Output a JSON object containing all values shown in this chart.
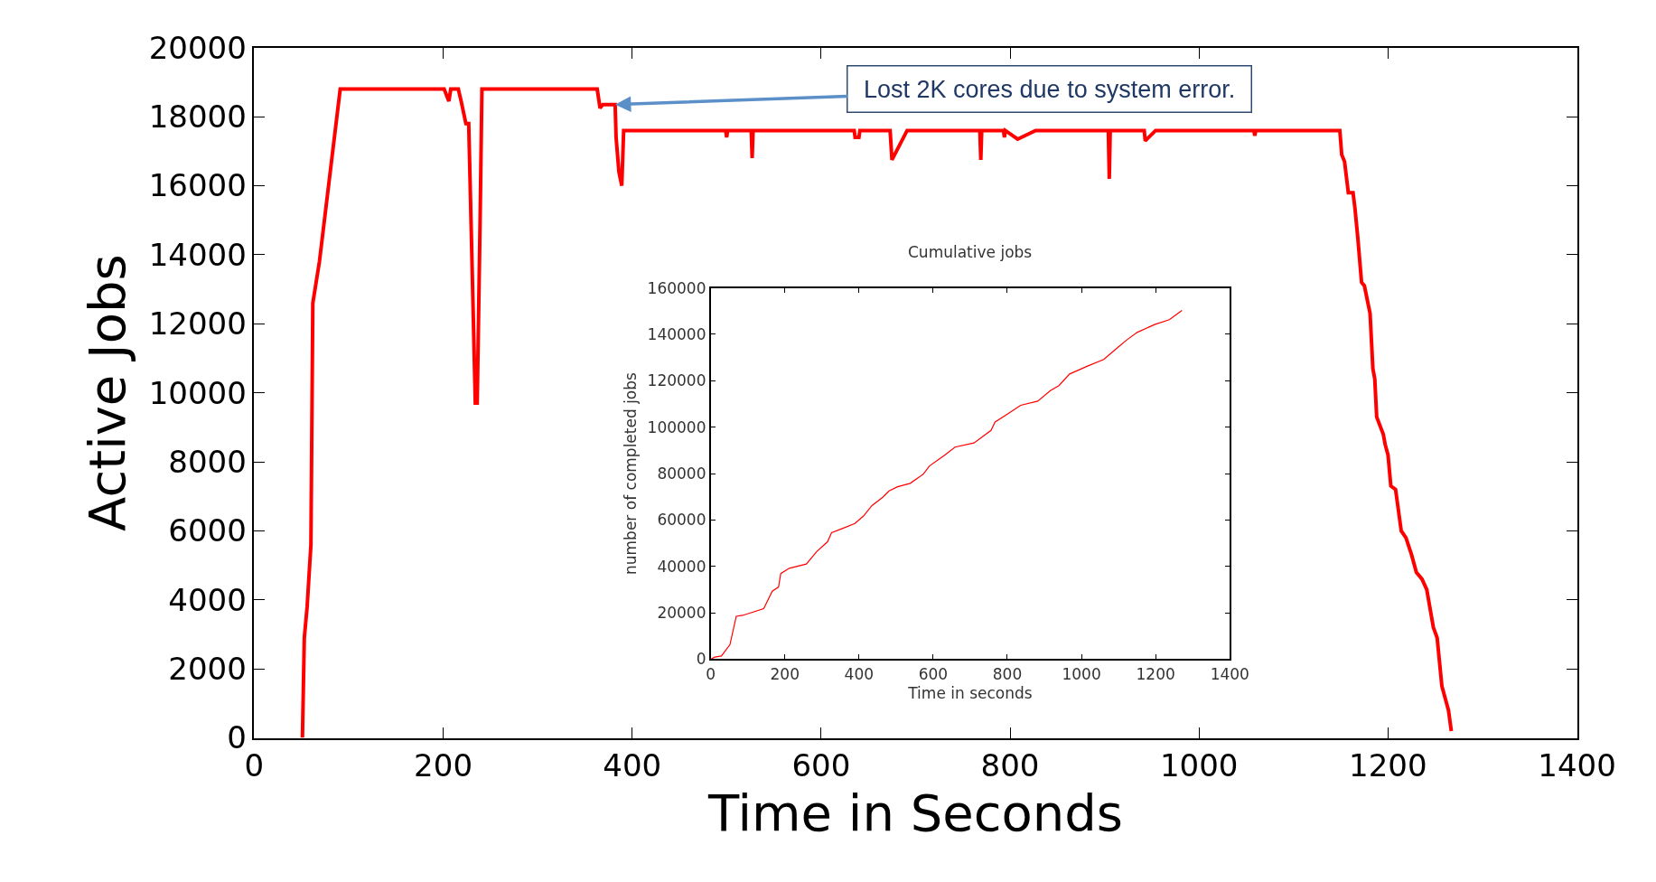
{
  "chart_data": [
    {
      "type": "line",
      "xlabel": "Time in Seconds",
      "ylabel": "Active Jobs",
      "xlim": [
        0,
        1400
      ],
      "ylim": [
        0,
        20000
      ],
      "xticks": [
        0,
        200,
        400,
        600,
        800,
        1000,
        1200,
        1400
      ],
      "yticks": [
        0,
        2000,
        4000,
        6000,
        8000,
        10000,
        12000,
        14000,
        16000,
        18000,
        20000
      ],
      "marker": "none",
      "line_style": "solid",
      "annotations": [
        {
          "text": "Lost 2K cores due to system error.",
          "x": 382,
          "y": 18350
        }
      ],
      "series": [
        {
          "color": "#ff0000",
          "x": [
            51,
            53,
            56,
            60,
            62,
            69,
            91,
            201,
            206,
            208,
            216,
            219,
            224,
            227,
            231,
            234,
            236,
            239,
            241,
            363,
            366,
            369,
            382,
            383,
            386,
            389,
            391,
            499,
            500,
            501,
            526,
            527,
            528,
            635,
            636,
            640,
            641,
            673,
            675,
            691,
            768,
            769,
            770,
            793,
            794,
            795,
            808,
            827,
            904,
            905,
            906,
            942,
            943,
            954,
            1058,
            1059,
            1060,
            1149,
            1151,
            1154,
            1158,
            1163,
            1165,
            1168,
            1172,
            1175,
            1181,
            1184,
            1186,
            1188,
            1195,
            1197,
            1200,
            1203,
            1208,
            1214,
            1219,
            1225,
            1230,
            1236,
            1241,
            1248,
            1252,
            1257,
            1264,
            1267
          ],
          "values": [
            0,
            2900,
            3800,
            5600,
            12600,
            13800,
            18800,
            18800,
            18450,
            18800,
            18800,
            18450,
            17800,
            17800,
            13200,
            9700,
            9700,
            14900,
            18800,
            18800,
            18250,
            18350,
            18350,
            17400,
            16400,
            16000,
            17600,
            17600,
            17400,
            17600,
            17600,
            16800,
            17600,
            17600,
            17400,
            17400,
            17600,
            17600,
            16750,
            17600,
            17600,
            16750,
            17600,
            17600,
            17400,
            17600,
            17350,
            17600,
            17600,
            16200,
            17600,
            17600,
            17300,
            17600,
            17600,
            17450,
            17600,
            17600,
            16900,
            16700,
            15800,
            15800,
            15350,
            14500,
            13200,
            13100,
            12300,
            10700,
            10400,
            9300,
            8800,
            8500,
            8200,
            7300,
            7200,
            6000,
            5800,
            5300,
            4800,
            4600,
            4300,
            3200,
            2900,
            1500,
            800,
            200
          ]
        }
      ]
    },
    {
      "type": "line",
      "title": "Cumulative jobs",
      "xlabel": "Time in seconds",
      "ylabel": "number of completed jobs",
      "xlim": [
        0,
        1400
      ],
      "ylim": [
        0,
        160000
      ],
      "xticks": [
        0,
        200,
        400,
        600,
        800,
        1000,
        1200,
        1400
      ],
      "yticks": [
        0,
        20000,
        40000,
        60000,
        80000,
        100000,
        120000,
        140000,
        160000
      ],
      "marker": "none",
      "line_style": "solid",
      "series": [
        {
          "color": "#ff0000",
          "x": [
            0,
            11,
            29,
            52,
            69,
            86,
            143,
            166,
            183,
            189,
            212,
            258,
            286,
            315,
            326,
            355,
            389,
            412,
            435,
            464,
            481,
            504,
            538,
            573,
            590,
            630,
            659,
            710,
            756,
            767,
            802,
            836,
            882,
            916,
            939,
            968,
            1019,
            1060,
            1100,
            1123,
            1151,
            1197,
            1237,
            1271
          ],
          "values": [
            0,
            900,
            1400,
            6300,
            18500,
            18900,
            21800,
            29300,
            31100,
            36900,
            39200,
            41000,
            46400,
            50600,
            54500,
            56300,
            58500,
            61700,
            66200,
            69800,
            72500,
            74300,
            75800,
            79700,
            83300,
            87800,
            91400,
            93200,
            98600,
            102200,
            105800,
            109400,
            111200,
            115700,
            117900,
            122900,
            126500,
            129200,
            134600,
            137700,
            140900,
            144200,
            146300,
            150300
          ]
        }
      ]
    }
  ]
}
